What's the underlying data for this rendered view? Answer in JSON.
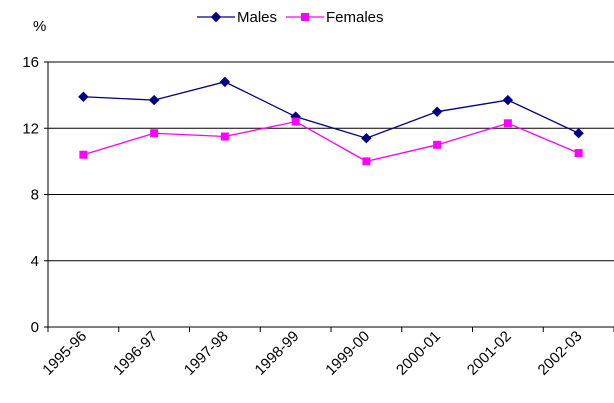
{
  "chart_data": {
    "type": "line",
    "unit_label": "%",
    "categories": [
      "1995-96",
      "1996-97",
      "1997-98",
      "1998-99",
      "1999-00",
      "2000-01",
      "2001-02",
      "2002-03"
    ],
    "series": [
      {
        "name": "Males",
        "color": "#000080",
        "marker": "diamond",
        "values": [
          13.9,
          13.7,
          14.8,
          12.7,
          11.4,
          13.0,
          13.7,
          11.7
        ]
      },
      {
        "name": "Females",
        "color": "#FF00FF",
        "marker": "square",
        "values": [
          10.4,
          11.7,
          11.5,
          12.4,
          10.0,
          11.0,
          12.3,
          10.5
        ]
      }
    ],
    "ylim": [
      0,
      16
    ],
    "yticks": [
      0,
      4,
      8,
      12,
      16
    ],
    "grid": true,
    "legend_position": "top"
  }
}
